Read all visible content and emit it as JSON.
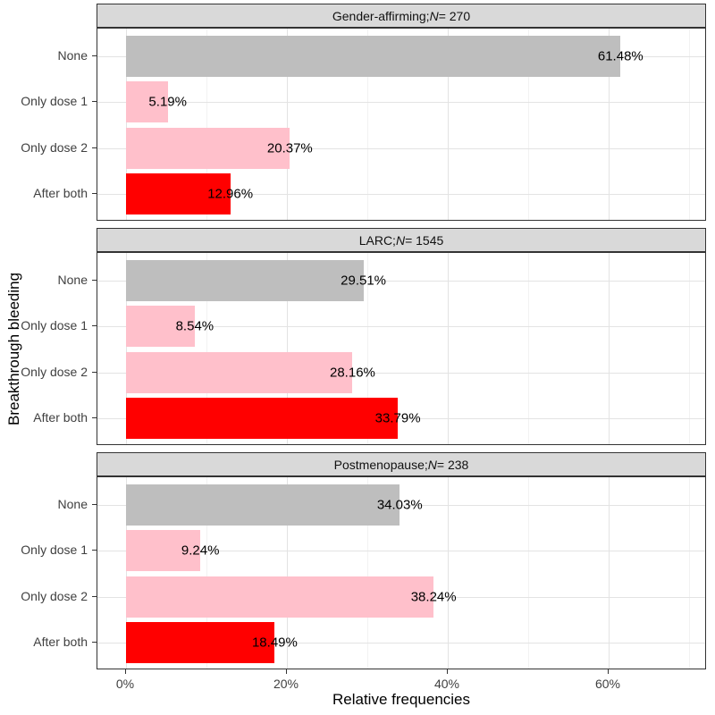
{
  "chart_data": {
    "type": "bar",
    "orientation": "horizontal",
    "xlabel": "Relative frequencies",
    "ylabel": "Breakthrough bleeding",
    "legend_position": "none",
    "grid": true,
    "x_axis": {
      "unit": "%",
      "range_shown": [
        0,
        72
      ],
      "major_ticks": [
        {
          "value": 0,
          "label": "0%"
        },
        {
          "value": 20,
          "label": "20%"
        },
        {
          "value": 40,
          "label": "40%"
        },
        {
          "value": 60,
          "label": "60%"
        }
      ],
      "minor_ticks": [
        10,
        30,
        50,
        70
      ]
    },
    "categories": [
      "None",
      "Only dose 1",
      "Only dose 2",
      "After both"
    ],
    "bar_colors": [
      "#BEBEBE",
      "#FFC0CB",
      "#FFC0CB",
      "#FF0000"
    ],
    "facets": [
      {
        "title_prefix": "Gender-affirming; ",
        "title_n_symbol": "N",
        "title_n_suffix": " = 270",
        "values": [
          61.48,
          5.19,
          20.37,
          12.96
        ],
        "value_labels": [
          "61.48%",
          "5.19%",
          "20.37%",
          "12.96%"
        ]
      },
      {
        "title_prefix": "LARC; ",
        "title_n_symbol": "N",
        "title_n_suffix": " = 1545",
        "values": [
          29.51,
          8.54,
          28.16,
          33.79
        ],
        "value_labels": [
          "29.51%",
          "8.54%",
          "28.16%",
          "33.79%"
        ]
      },
      {
        "title_prefix": "Postmenopause; ",
        "title_n_symbol": "N",
        "title_n_suffix": " = 238",
        "values": [
          34.03,
          9.24,
          38.24,
          18.49
        ],
        "value_labels": [
          "34.03%",
          "9.24%",
          "38.24%",
          "18.49%"
        ]
      }
    ],
    "style_colors": {
      "strip_fill": "#D9D9D9",
      "panel_border": "#333333",
      "grid_major": "#E3E3E3",
      "grid_minor": "#F2F2F2",
      "axis_text": "#404040",
      "label_text": "#000000"
    }
  }
}
